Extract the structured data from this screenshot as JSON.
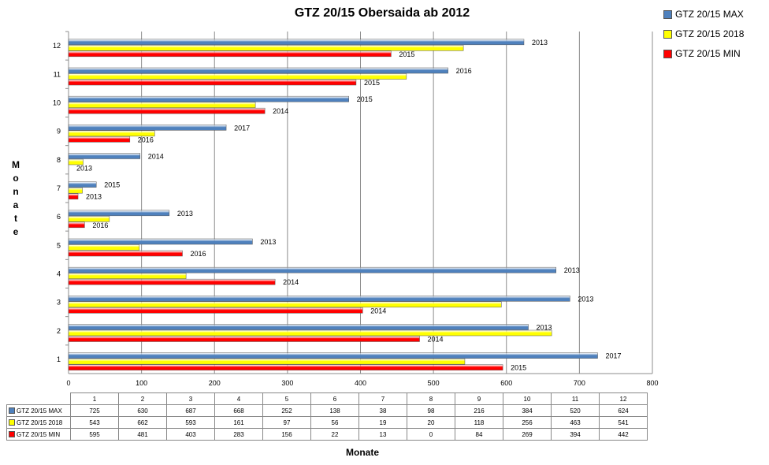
{
  "chart_data": {
    "type": "bar",
    "orientation": "horizontal",
    "title": "GTZ 20/15 Obersaida ab 2012",
    "xlabel": "Monate",
    "ylabel": "Monate",
    "xlim": [
      0,
      800
    ],
    "x_ticks": [
      "0",
      "100",
      "200",
      "300",
      "400",
      "500",
      "600",
      "700",
      "800"
    ],
    "categories": [
      "1",
      "2",
      "3",
      "4",
      "5",
      "6",
      "7",
      "8",
      "9",
      "10",
      "11",
      "12"
    ],
    "grid": true,
    "legend_position": "top-right",
    "series": [
      {
        "name": "GTZ 20/15 MAX",
        "color": "#4f81bd",
        "values": [
          725,
          630,
          687,
          668,
          252,
          138,
          38,
          98,
          216,
          384,
          520,
          624
        ],
        "year_labels": [
          "2017",
          "2013",
          "2013",
          "2013",
          "2013",
          "2013",
          "2015",
          "2014",
          "2017",
          "2015",
          "2016",
          "2013"
        ]
      },
      {
        "name": "GTZ 20/15 2018",
        "color": "#ffff00",
        "values": [
          543,
          662,
          593,
          161,
          97,
          56,
          19,
          20,
          118,
          256,
          463,
          541
        ],
        "year_labels": [
          "",
          "",
          "",
          "",
          "",
          "",
          "",
          "",
          "",
          "",
          "",
          ""
        ]
      },
      {
        "name": "GTZ 20/15 MIN",
        "color": "#ff0000",
        "values": [
          595,
          481,
          403,
          283,
          156,
          22,
          13,
          0,
          84,
          269,
          394,
          442
        ],
        "year_labels": [
          "2015",
          "2014",
          "2014",
          "2014",
          "2016",
          "2016",
          "2013",
          "2013",
          "2016",
          "2014",
          "2015",
          "2015"
        ]
      }
    ]
  }
}
